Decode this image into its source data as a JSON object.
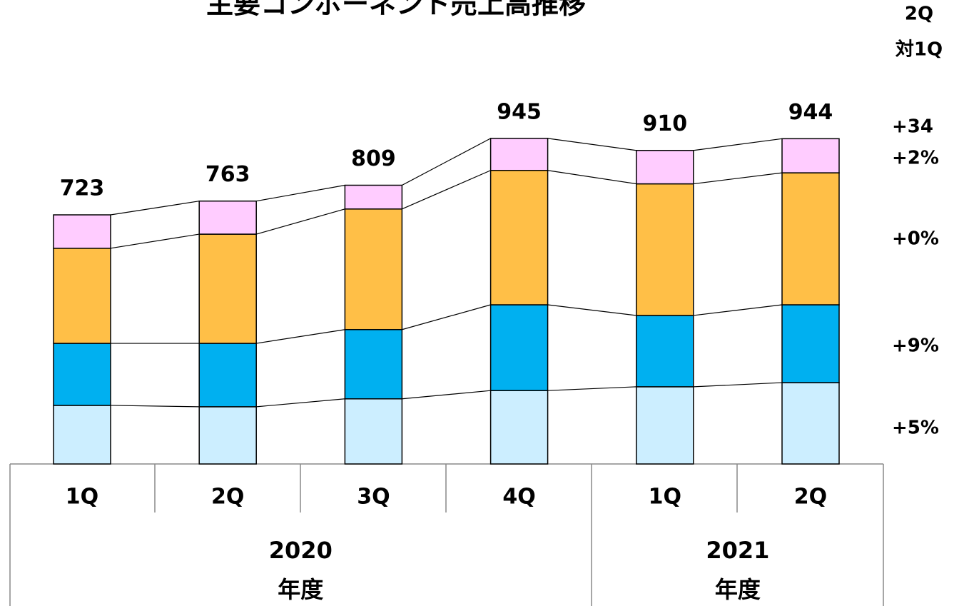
{
  "chart_data": {
    "type": "stacked_bar",
    "title": "主要コンポーネント売上高推移",
    "categories": [
      "1Q",
      "2Q",
      "3Q",
      "4Q",
      "1Q",
      "2Q"
    ],
    "groups": [
      {
        "label": [
          "2020",
          "年度"
        ],
        "span": 4
      },
      {
        "label": [
          "2021",
          "年度"
        ],
        "span": 2
      }
    ],
    "series": [
      {
        "color": "#cceeff",
        "values": [
          170,
          166,
          189,
          213,
          224,
          236
        ]
      },
      {
        "color": "#00b0f0",
        "values": [
          180,
          184,
          201,
          249,
          207,
          226
        ]
      },
      {
        "color": "#ffbf47",
        "values": [
          276,
          317,
          350,
          390,
          382,
          383
        ]
      },
      {
        "color": "#ffccff",
        "values": [
          97,
          96,
          69,
          93,
          97,
          99
        ]
      }
    ],
    "totals": [
      723,
      763,
      809,
      945,
      910,
      944
    ],
    "change_header": [
      "2Q",
      "対1Q"
    ],
    "change_labels": [
      "+34",
      "+2%",
      "+0%",
      "+9%",
      "+5%"
    ]
  }
}
